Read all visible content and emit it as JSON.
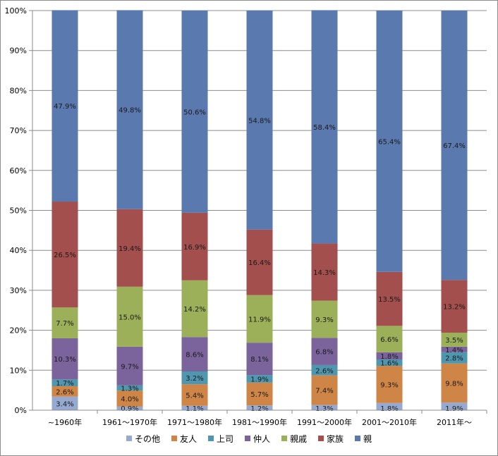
{
  "chart_data": {
    "type": "bar",
    "stacked": true,
    "normalized": true,
    "categories": [
      "~1960年",
      "1961～1970年",
      "1971～1980年",
      "1981～1990年",
      "1991～2000年",
      "2001～2010年",
      "2011年～"
    ],
    "ylim": [
      0,
      100
    ],
    "yticks": [
      "0%",
      "10%",
      "20%",
      "30%",
      "40%",
      "50%",
      "60%",
      "70%",
      "80%",
      "90%",
      "100%"
    ],
    "grid": true,
    "legend_position": "bottom",
    "series": [
      {
        "name": "その他",
        "color": "#95a9d1",
        "values": [
          3.4,
          0.9,
          1.1,
          1.2,
          1.3,
          1.8,
          1.9
        ]
      },
      {
        "name": "友人",
        "color": "#cf8546",
        "values": [
          2.6,
          4.0,
          5.4,
          5.7,
          7.4,
          9.3,
          9.8
        ]
      },
      {
        "name": "上司",
        "color": "#4f96af",
        "values": [
          1.7,
          1.3,
          3.2,
          1.9,
          2.6,
          1.6,
          2.8
        ]
      },
      {
        "name": "仲人",
        "color": "#7b649b",
        "values": [
          10.3,
          9.7,
          8.6,
          8.1,
          6.8,
          1.8,
          1.4
        ]
      },
      {
        "name": "親戚",
        "color": "#9bb058",
        "values": [
          7.7,
          15.0,
          14.2,
          11.9,
          9.3,
          6.6,
          3.5
        ]
      },
      {
        "name": "家族",
        "color": "#a24f4d",
        "values": [
          26.5,
          19.4,
          16.9,
          16.4,
          14.3,
          13.5,
          13.2
        ]
      },
      {
        "name": "親",
        "color": "#5a79ae",
        "values": [
          47.9,
          49.8,
          50.6,
          54.8,
          58.4,
          65.4,
          67.4
        ]
      }
    ]
  }
}
